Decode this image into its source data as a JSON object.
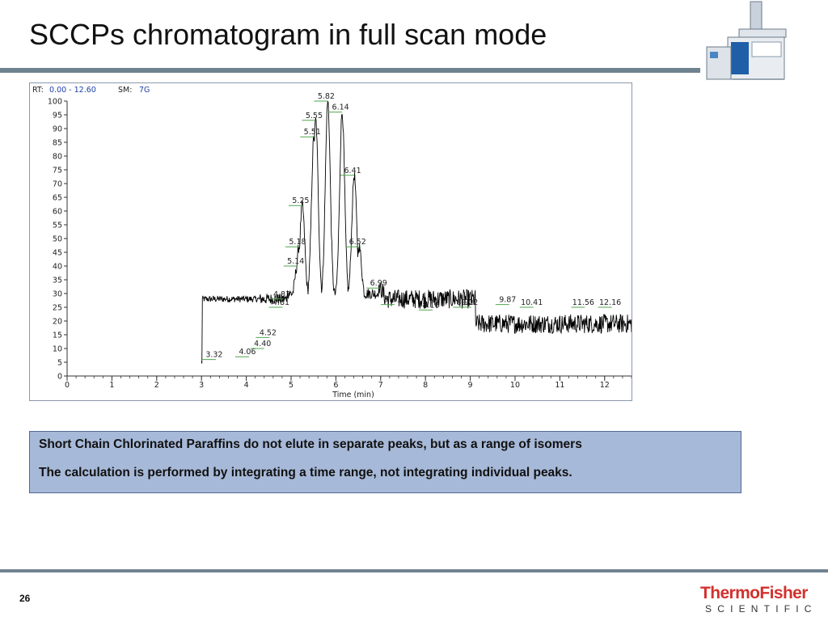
{
  "slide": {
    "title": "SCCPs chromatogram in full scan mode",
    "page_number": "26"
  },
  "colors": {
    "title_rule": "#6f8290",
    "trace": "#000000",
    "peak_marker": "#4fa64f",
    "header_value": "#1f3fa8",
    "note_fill": "#a7b9d8",
    "note_border": "#4f6a93",
    "brand_red": "#d3312e"
  },
  "chart_header": {
    "rt_label": "RT:",
    "rt_value": "0.00 - 12.60",
    "sm_label": "SM:",
    "sm_value": "7G"
  },
  "chart_data": {
    "type": "line",
    "xlabel": "Time (min)",
    "ylabel": "",
    "xlim": [
      0,
      12.6
    ],
    "ylim": [
      0,
      100
    ],
    "x_ticks": [
      0,
      1,
      2,
      3,
      4,
      5,
      6,
      7,
      8,
      9,
      10,
      11,
      12
    ],
    "y_ticks": [
      0,
      5,
      10,
      15,
      20,
      25,
      30,
      35,
      40,
      45,
      50,
      55,
      60,
      65,
      70,
      75,
      80,
      85,
      90,
      95,
      100
    ],
    "trace_start": 3.0,
    "trace_end": 12.6,
    "baseline_level": 5,
    "noise_level": 19,
    "noise_amplitude": 3.5,
    "peaks": [
      {
        "rt": 3.32,
        "label": "3.32",
        "height": 6
      },
      {
        "rt": 4.06,
        "label": "4.06",
        "height": 7
      },
      {
        "rt": 4.4,
        "label": "4.40",
        "height": 10
      },
      {
        "rt": 4.52,
        "label": "4.52",
        "height": 14
      },
      {
        "rt": 4.81,
        "label": "4.81",
        "height": 25
      },
      {
        "rt": 4.83,
        "label": "4.83",
        "height": 28
      },
      {
        "rt": 5.14,
        "label": "5.14",
        "height": 40
      },
      {
        "rt": 5.18,
        "label": "5.18",
        "height": 47
      },
      {
        "rt": 5.25,
        "label": "5.25",
        "height": 62
      },
      {
        "rt": 5.51,
        "label": "5.51",
        "height": 87
      },
      {
        "rt": 5.55,
        "label": "5.55",
        "height": 93
      },
      {
        "rt": 5.82,
        "label": "5.82",
        "height": 100
      },
      {
        "rt": 6.14,
        "label": "6.14",
        "height": 96
      },
      {
        "rt": 6.41,
        "label": "6.41",
        "height": 73
      },
      {
        "rt": 6.52,
        "label": "6.52",
        "height": 47
      },
      {
        "rt": 6.99,
        "label": "6.99",
        "height": 32
      },
      {
        "rt": 7.31,
        "label": "7.31",
        "height": 26
      },
      {
        "rt": 8.16,
        "label": "8.16",
        "height": 24
      },
      {
        "rt": 8.92,
        "label": "8.92",
        "height": 25
      },
      {
        "rt": 9.02,
        "label": "9.02",
        "height": 25
      },
      {
        "rt": 9.87,
        "label": "9.87",
        "height": 26
      },
      {
        "rt": 10.41,
        "label": "10.41",
        "height": 25
      },
      {
        "rt": 11.56,
        "label": "11.56",
        "height": 25
      },
      {
        "rt": 12.16,
        "label": "12.16",
        "height": 25
      }
    ]
  },
  "note": {
    "line1": "Short Chain Chlorinated Paraffins do not elute in separate peaks, but as a range of isomers",
    "line2": "The calculation is performed by integrating a time range, not integrating individual peaks."
  },
  "brand": {
    "line1": "ThermoFisher",
    "line2": "SCIENTIFIC"
  },
  "icons": {
    "instrument": "gc-ms-instrument-icon"
  }
}
